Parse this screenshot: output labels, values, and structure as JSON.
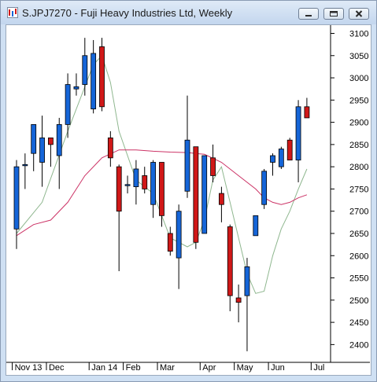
{
  "window": {
    "title": "S.JPJ7270 - Fuji Heavy Industries Ltd, Weekly",
    "icon": "chart-window-icon",
    "buttons": [
      "minimize-icon",
      "maximize-icon",
      "close-icon"
    ]
  },
  "chart_data": {
    "type": "candlestick",
    "symbol": "S.JPJ7270",
    "name": "Fuji Heavy Industries Ltd",
    "period": "Weekly",
    "y_ticks": [
      3100,
      3050,
      3000,
      2950,
      2900,
      2850,
      2800,
      2750,
      2700,
      2650,
      2600,
      2550,
      2500,
      2450,
      2400
    ],
    "ylim": [
      2360,
      3115
    ],
    "x_labels": [
      {
        "label": "Nov 13",
        "index": -0.5
      },
      {
        "label": "Dec",
        "index": 3.5
      },
      {
        "label": "Jan 14",
        "index": 8.5
      },
      {
        "label": "Feb",
        "index": 12.5
      },
      {
        "label": "Mar",
        "index": 16.5
      },
      {
        "label": "Apr",
        "index": 21.5
      },
      {
        "label": "May",
        "index": 25.5
      },
      {
        "label": "Jun",
        "index": 29.5
      },
      {
        "label": "Jul",
        "index": 34.5
      }
    ],
    "colors": {
      "up": "#1565d8",
      "down": "#d01818",
      "ma_short": "#8fb78f",
      "ma_long": "#cc3366",
      "wick": "#000000",
      "grid": "#000000"
    },
    "candles": [
      {
        "o": 2660,
        "h": 2815,
        "l": 2615,
        "c": 2800
      },
      {
        "o": 2805,
        "h": 2830,
        "l": 2750,
        "c": 2805
      },
      {
        "o": 2830,
        "h": 2895,
        "l": 2790,
        "c": 2895
      },
      {
        "o": 2810,
        "h": 2915,
        "l": 2755,
        "c": 2865
      },
      {
        "o": 2865,
        "h": 2865,
        "l": 2800,
        "c": 2850
      },
      {
        "o": 2825,
        "h": 2910,
        "l": 2750,
        "c": 2895
      },
      {
        "o": 2895,
        "h": 3010,
        "l": 2865,
        "c": 2985
      },
      {
        "o": 2975,
        "h": 3010,
        "l": 2960,
        "c": 2980
      },
      {
        "o": 2985,
        "h": 3090,
        "l": 2960,
        "c": 3050
      },
      {
        "o": 2930,
        "h": 3085,
        "l": 2920,
        "c": 3055
      },
      {
        "o": 3070,
        "h": 3090,
        "l": 2925,
        "c": 2935
      },
      {
        "o": 2865,
        "h": 2880,
        "l": 2800,
        "c": 2820
      },
      {
        "o": 2800,
        "h": 2805,
        "l": 2565,
        "c": 2700
      },
      {
        "o": 2760,
        "h": 2780,
        "l": 2740,
        "c": 2760
      },
      {
        "o": 2755,
        "h": 2815,
        "l": 2715,
        "c": 2795
      },
      {
        "o": 2780,
        "h": 2800,
        "l": 2740,
        "c": 2750
      },
      {
        "o": 2715,
        "h": 2815,
        "l": 2685,
        "c": 2810
      },
      {
        "o": 2810,
        "h": 2810,
        "l": 2665,
        "c": 2690
      },
      {
        "o": 2650,
        "h": 2665,
        "l": 2600,
        "c": 2610
      },
      {
        "o": 2595,
        "h": 2715,
        "l": 2525,
        "c": 2700
      },
      {
        "o": 2745,
        "h": 2960,
        "l": 2730,
        "c": 2860
      },
      {
        "o": 2845,
        "h": 2845,
        "l": 2615,
        "c": 2630
      },
      {
        "o": 2650,
        "h": 2825,
        "l": 2650,
        "c": 2825
      },
      {
        "o": 2820,
        "h": 2850,
        "l": 2765,
        "c": 2780
      },
      {
        "o": 2740,
        "h": 2755,
        "l": 2675,
        "c": 2715
      },
      {
        "o": 2665,
        "h": 2670,
        "l": 2475,
        "c": 2510
      },
      {
        "o": 2505,
        "h": 2535,
        "l": 2450,
        "c": 2495
      },
      {
        "o": 2510,
        "h": 2595,
        "l": 2385,
        "c": 2575
      },
      {
        "o": 2645,
        "h": 2690,
        "l": 2650,
        "c": 2690
      },
      {
        "o": 2715,
        "h": 2795,
        "l": 2705,
        "c": 2790
      },
      {
        "o": 2810,
        "h": 2830,
        "l": 2780,
        "c": 2825
      },
      {
        "o": 2800,
        "h": 2845,
        "l": 2795,
        "c": 2840
      },
      {
        "o": 2860,
        "h": 2865,
        "l": 2815,
        "c": 2815
      },
      {
        "o": 2815,
        "h": 2950,
        "l": 2765,
        "c": 2935
      },
      {
        "o": 2935,
        "h": 2955,
        "l": 2910,
        "c": 2910
      }
    ],
    "ma_short": [
      [
        0,
        2650
      ],
      [
        3,
        2720
      ],
      [
        6,
        2880
      ],
      [
        8,
        2980
      ],
      [
        9,
        3030
      ],
      [
        10,
        3050
      ],
      [
        11,
        2990
      ],
      [
        12,
        2880
      ],
      [
        14,
        2770
      ],
      [
        16,
        2740
      ],
      [
        18,
        2640
      ],
      [
        20,
        2620
      ],
      [
        21,
        2630
      ],
      [
        22,
        2680
      ],
      [
        23,
        2770
      ],
      [
        24,
        2800
      ],
      [
        25,
        2720
      ],
      [
        26,
        2640
      ],
      [
        27,
        2560
      ],
      [
        28,
        2515
      ],
      [
        29,
        2520
      ],
      [
        30,
        2600
      ],
      [
        31,
        2660
      ],
      [
        32,
        2700
      ],
      [
        33,
        2750
      ],
      [
        34,
        2795
      ]
    ],
    "ma_long": [
      [
        0,
        2645
      ],
      [
        2,
        2670
      ],
      [
        4,
        2680
      ],
      [
        6,
        2720
      ],
      [
        8,
        2780
      ],
      [
        10,
        2820
      ],
      [
        12,
        2838
      ],
      [
        14,
        2838
      ],
      [
        16,
        2835
      ],
      [
        18,
        2833
      ],
      [
        20,
        2832
      ],
      [
        22,
        2828
      ],
      [
        24,
        2810
      ],
      [
        26,
        2780
      ],
      [
        28,
        2750
      ],
      [
        29,
        2730
      ],
      [
        30,
        2720
      ],
      [
        31,
        2715
      ],
      [
        32,
        2720
      ],
      [
        33,
        2730
      ],
      [
        34,
        2737
      ]
    ]
  }
}
